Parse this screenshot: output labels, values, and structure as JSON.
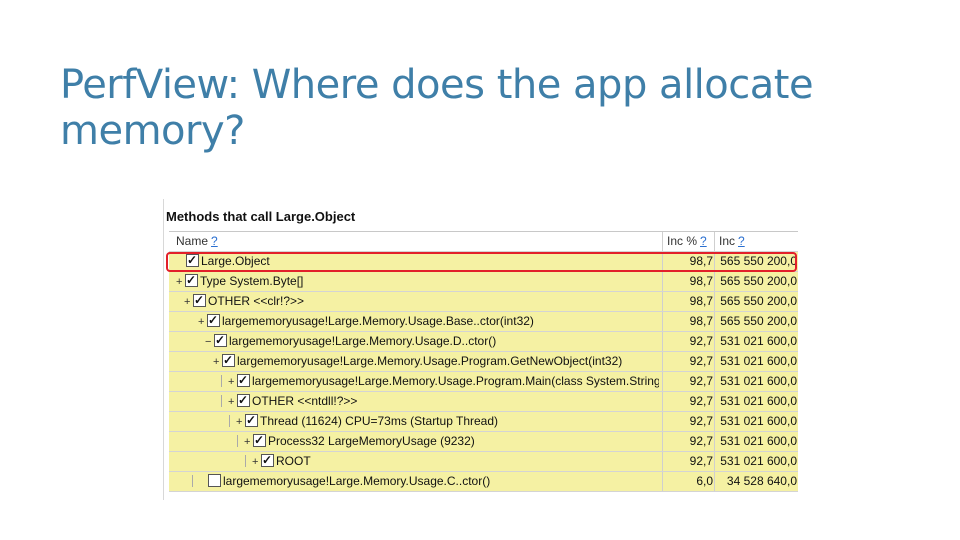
{
  "slide": {
    "title": "PerfView: Where does the app allocate memory?"
  },
  "panel": {
    "title": "Methods that call Large.Object",
    "columns": {
      "name": "Name",
      "inc_pct": "Inc %",
      "inc": "Inc",
      "help": "?"
    },
    "rows": [
      {
        "expander": "",
        "name": "Large.Object",
        "inc_pct": "98,7",
        "inc": "565 550 200,0",
        "checked": true
      },
      {
        "expander": "+",
        "name": "Type System.Byte[]",
        "inc_pct": "98,7",
        "inc": "565 550 200,0",
        "checked": true
      },
      {
        "expander": "+",
        "name": "OTHER <<clr!?>>",
        "inc_pct": "98,7",
        "inc": "565 550 200,0",
        "checked": true
      },
      {
        "expander": "+",
        "name": "largememoryusage!Large.Memory.Usage.Base..ctor(int32)",
        "inc_pct": "98,7",
        "inc": "565 550 200,0",
        "checked": true
      },
      {
        "expander": "−",
        "name": "largememoryusage!Large.Memory.Usage.D..ctor()",
        "inc_pct": "92,7",
        "inc": "531 021 600,0",
        "checked": true
      },
      {
        "expander": "+",
        "name": "largememoryusage!Large.Memory.Usage.Program.GetNewObject(int32)",
        "inc_pct": "92,7",
        "inc": "531 021 600,0",
        "checked": true
      },
      {
        "expander": "+",
        "name": "largememoryusage!Large.Memory.Usage.Program.Main(class System.String[])",
        "inc_pct": "92,7",
        "inc": "531 021 600,0",
        "checked": true
      },
      {
        "expander": "+",
        "name": "OTHER <<ntdll!?>>",
        "inc_pct": "92,7",
        "inc": "531 021 600,0",
        "checked": true
      },
      {
        "expander": "+",
        "name": "Thread (11624) CPU=73ms (Startup Thread)",
        "inc_pct": "92,7",
        "inc": "531 021 600,0",
        "checked": true
      },
      {
        "expander": "+",
        "name": "Process32 LargeMemoryUsage (9232)",
        "inc_pct": "92,7",
        "inc": "531 021 600,0",
        "checked": true
      },
      {
        "expander": "+",
        "name": "ROOT",
        "inc_pct": "92,7",
        "inc": "531 021 600,0",
        "checked": true
      },
      {
        "expander": "",
        "name": "largememoryusage!Large.Memory.Usage.C..ctor()",
        "inc_pct": "6,0",
        "inc": "34 528 640,0",
        "checked": false
      }
    ]
  },
  "colors": {
    "title": "#3f7fa8",
    "highlight": "#f5f1a3",
    "selection_box": "#e2202a",
    "help_link": "#2a6fd0"
  },
  "icons": {
    "checkbox": "checkbox-icon",
    "expand": "expand-icon"
  }
}
